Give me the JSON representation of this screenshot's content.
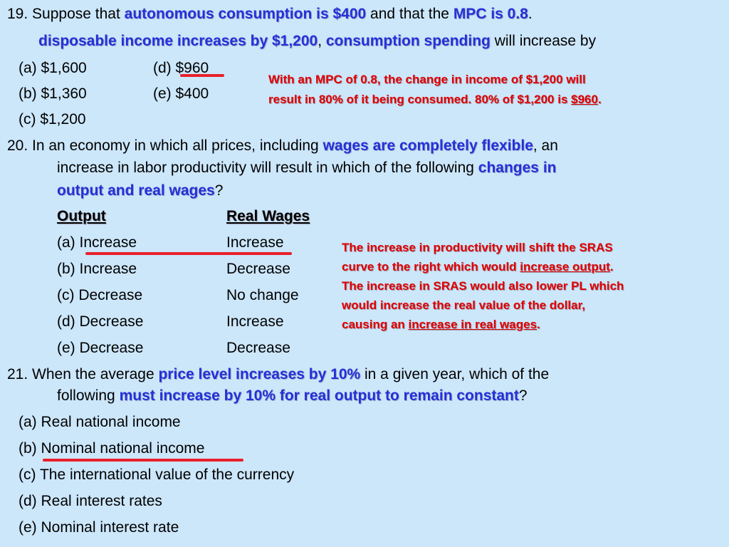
{
  "q19": {
    "p1": "19. Suppose that ",
    "h1": "autonomous consumption is $400",
    "p2": " and that the ",
    "h2": "MPC is 0.8",
    "p3": ".",
    "h3": "disposable income increases by $1,200",
    "p4": ", ",
    "h4": "consumption spending",
    "p5": " will increase by",
    "options": {
      "a": "(a) $1,600",
      "b": "(b) $1,360",
      "c": "(c) $1,200",
      "d_prefix": "(d) ",
      "d_value": "$960",
      "e": "(e) $400"
    },
    "expl_line1": "With an MPC of  0.8,  the  change  in income of $1,200 will",
    "expl_line2a": "result in 80% of it being consumed.  80% of $1,200 is ",
    "expl_line2b": "$960",
    "expl_line2c": "."
  },
  "q20": {
    "p1": "20. In an economy in which all prices, including ",
    "h1": "wages are completely flexible",
    "p2": ", an",
    "p3": "increase in labor productivity will result in which of the following ",
    "h2a": "changes in",
    "h2b": "output and real wages",
    "p4": "?",
    "col_output": "Output",
    "col_wages": "Real Wages",
    "rows": [
      {
        "out": "(a) Increase",
        "wage": "Increase"
      },
      {
        "out": "(b) Increase",
        "wage": "Decrease"
      },
      {
        "out": "(c) Decrease",
        "wage": "No change"
      },
      {
        "out": "(d) Decrease",
        "wage": "Increase"
      },
      {
        "out": "(e) Decrease",
        "wage": "Decrease"
      }
    ],
    "expl1": "The  increase in productivity will shift the SRAS",
    "expl2a": "curve to the right which would ",
    "expl2b": "increase output",
    "expl2c": ".",
    "expl3": "The increase in SRAS would also lower PL which",
    "expl4": "would increase the real value of the dollar,",
    "expl5a": "causing an ",
    "expl5b": "increase in real wages",
    "expl5c": "."
  },
  "q21": {
    "p1": "21. When the average ",
    "h1": "price level increases by 10%",
    "p2": " in a given year, which of the",
    "p3": "following ",
    "h2": "must increase by 10% for real output to remain constant",
    "p4": "?",
    "options": [
      "(a) Real national income",
      "(b) Nominal national income",
      "(c) The international value of the currency",
      "(d) Real interest rates",
      "(e) Nominal interest rate"
    ]
  },
  "colors": {
    "background": "#cce6fa",
    "highlight": "#2530d8",
    "explanation": "#e00000",
    "marker": "#e8202a"
  }
}
